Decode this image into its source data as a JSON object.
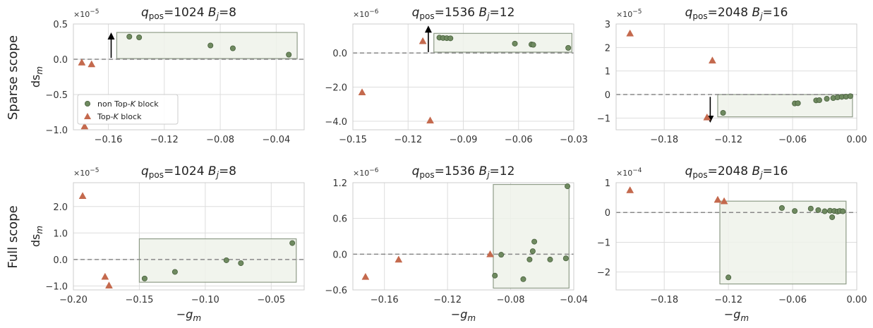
{
  "colors": {
    "circle": "#6f8a60",
    "circle_edge": "#48603d",
    "triangle": "#c4694d",
    "box_fill": "#eef2ea",
    "box_edge": "#8f9c88",
    "grid": "#dddddd",
    "spine": "#cccccc",
    "zero_line": "#888888"
  },
  "row_labels": [
    "Sparse scope",
    "Full scope"
  ],
  "y_axis_label": "ds_m",
  "x_axis_label": "−g_m",
  "legend": {
    "circle_label": "non Top-K block",
    "triangle_label": "Top-K block"
  },
  "chart_data": [
    {
      "type": "scatter",
      "title": {
        "q": "1024",
        "B": "8"
      },
      "multiplier": {
        "base": "×10",
        "exp": "−5"
      },
      "xlim": [
        -0.185,
        -0.02
      ],
      "ylim": [
        -1.0,
        0.5
      ],
      "xticks": [
        -0.16,
        -0.12,
        -0.08,
        -0.04
      ],
      "xticklabels": [
        "−0.16",
        "−0.12",
        "−0.08",
        "−0.04"
      ],
      "yticks": [
        -1.0,
        -0.5,
        0.0,
        0.5
      ],
      "yticklabels": [
        "−1.0",
        "−0.5",
        "0.0",
        "0.5"
      ],
      "circles": [
        [
          -0.145,
          0.32
        ],
        [
          -0.138,
          0.31
        ],
        [
          -0.087,
          0.195
        ],
        [
          -0.071,
          0.155
        ],
        [
          -0.031,
          0.065
        ]
      ],
      "triangles": [
        [
          -0.179,
          -0.045
        ],
        [
          -0.172,
          -0.07
        ],
        [
          -0.177,
          -0.95
        ]
      ],
      "box": [
        -0.154,
        -0.025,
        0.01,
        0.38
      ],
      "arrow": {
        "x": -0.158,
        "from": 0.02,
        "to": 0.33
      },
      "show_legend": true
    },
    {
      "type": "scatter",
      "title": {
        "q": "1536",
        "B": "12"
      },
      "multiplier": {
        "base": "×10",
        "exp": "−6"
      },
      "xlim": [
        -0.15,
        -0.03
      ],
      "ylim": [
        -4.5,
        1.7
      ],
      "xticks": [
        -0.15,
        -0.12,
        -0.09,
        -0.06,
        -0.03
      ],
      "xticklabels": [
        "−0.15",
        "−0.12",
        "−0.09",
        "−0.06",
        "−0.03"
      ],
      "yticks": [
        -4.0,
        -2.0,
        0.0
      ],
      "yticklabels": [
        "−4.0",
        "−2.0",
        "0.0"
      ],
      "circles": [
        [
          -0.103,
          0.9
        ],
        [
          -0.101,
          0.88
        ],
        [
          -0.099,
          0.87
        ],
        [
          -0.097,
          0.86
        ],
        [
          -0.062,
          0.55
        ],
        [
          -0.053,
          0.5
        ],
        [
          -0.052,
          0.48
        ],
        [
          -0.033,
          0.3
        ]
      ],
      "triangles": [
        [
          -0.145,
          -2.3
        ],
        [
          -0.112,
          0.7
        ],
        [
          -0.108,
          -3.95
        ]
      ],
      "box": [
        -0.106,
        -0.031,
        0.05,
        1.15
      ],
      "arrow": {
        "x": -0.109,
        "from": 0.05,
        "to": 1.4
      },
      "show_legend": false
    },
    {
      "type": "scatter",
      "title": {
        "q": "2048",
        "B": "16"
      },
      "multiplier": {
        "base": "×10",
        "exp": "−5"
      },
      "xlim": [
        -0.225,
        0.0
      ],
      "ylim": [
        -1.5,
        3.0
      ],
      "xticks": [
        -0.18,
        -0.12,
        -0.06,
        0.0
      ],
      "xticklabels": [
        "−0.18",
        "−0.12",
        "−0.06",
        "0.00"
      ],
      "yticks": [
        -1,
        0,
        1,
        2,
        3
      ],
      "yticklabels": [
        "−1",
        "0",
        "1",
        "2",
        "3"
      ],
      "circles": [
        [
          -0.125,
          -0.78
        ],
        [
          -0.058,
          -0.38
        ],
        [
          -0.055,
          -0.37
        ],
        [
          -0.038,
          -0.25
        ],
        [
          -0.035,
          -0.24
        ],
        [
          -0.028,
          -0.18
        ],
        [
          -0.022,
          -0.15
        ],
        [
          -0.018,
          -0.12
        ],
        [
          -0.014,
          -0.1
        ],
        [
          -0.01,
          -0.09
        ],
        [
          -0.006,
          -0.07
        ]
      ],
      "triangles": [
        [
          -0.212,
          2.6
        ],
        [
          -0.135,
          1.45
        ],
        [
          -0.14,
          -0.97
        ]
      ],
      "box": [
        -0.13,
        -0.004,
        -0.95,
        0.0
      ],
      "arrow": {
        "x": -0.137,
        "from": -0.1,
        "to": -1.05
      },
      "show_legend": false
    },
    {
      "type": "scatter",
      "title": {
        "q": "1024",
        "B": "8"
      },
      "multiplier": {
        "base": "×10",
        "exp": "−5"
      },
      "xlim": [
        -0.2,
        -0.025
      ],
      "ylim": [
        -1.15,
        2.9
      ],
      "xticks": [
        -0.2,
        -0.15,
        -0.1,
        -0.05
      ],
      "xticklabels": [
        "−0.20",
        "−0.15",
        "−0.10",
        "−0.05"
      ],
      "yticks": [
        -1.0,
        0.0,
        1.0,
        2.0
      ],
      "yticklabels": [
        "−1.0",
        "0.0",
        "1.0",
        "2.0"
      ],
      "circles": [
        [
          -0.146,
          -0.72
        ],
        [
          -0.123,
          -0.47
        ],
        [
          -0.084,
          -0.03
        ],
        [
          -0.073,
          -0.14
        ],
        [
          -0.034,
          0.62
        ]
      ],
      "triangles": [
        [
          -0.193,
          2.4
        ],
        [
          -0.176,
          -0.65
        ],
        [
          -0.173,
          -0.98
        ]
      ],
      "box": [
        -0.15,
        -0.031,
        -0.86,
        0.78
      ],
      "arrow": null,
      "show_legend": false
    },
    {
      "type": "scatter",
      "title": {
        "q": "1536",
        "B": "12"
      },
      "multiplier": {
        "base": "×10",
        "exp": "−6"
      },
      "xlim": [
        -0.18,
        -0.04
      ],
      "ylim": [
        -0.6,
        1.2
      ],
      "xticks": [
        -0.16,
        -0.12,
        -0.08,
        -0.04
      ],
      "xticklabels": [
        "−0.16",
        "−0.12",
        "−0.08",
        "−0.04"
      ],
      "yticks": [
        -0.6,
        0.0,
        0.6,
        1.2
      ],
      "yticklabels": [
        "−0.6",
        "0.0",
        "0.6",
        "1.2"
      ],
      "circles": [
        [
          -0.09,
          -0.36
        ],
        [
          -0.086,
          -0.01
        ],
        [
          -0.072,
          -0.42
        ],
        [
          -0.068,
          -0.09
        ],
        [
          -0.066,
          0.05
        ],
        [
          -0.065,
          0.21
        ],
        [
          -0.055,
          -0.09
        ],
        [
          -0.045,
          -0.07
        ],
        [
          -0.044,
          1.14
        ]
      ],
      "triangles": [
        [
          -0.172,
          -0.38
        ],
        [
          -0.151,
          -0.09
        ],
        [
          -0.093,
          0.0
        ]
      ],
      "box": [
        -0.091,
        -0.043,
        -0.57,
        1.17
      ],
      "arrow": null,
      "show_legend": false
    },
    {
      "type": "scatter",
      "title": {
        "q": "2048",
        "B": "16"
      },
      "multiplier": {
        "base": "×10",
        "exp": "−4"
      },
      "xlim": [
        -0.225,
        0.0
      ],
      "ylim": [
        -2.6,
        1.0
      ],
      "xticks": [
        -0.18,
        -0.12,
        -0.06,
        0.0
      ],
      "xticklabels": [
        "−0.18",
        "−0.12",
        "−0.06",
        "0.00"
      ],
      "yticks": [
        -2,
        -1,
        0,
        1
      ],
      "yticklabels": [
        "−2",
        "−1",
        "0",
        "1"
      ],
      "circles": [
        [
          -0.12,
          -2.18
        ],
        [
          -0.07,
          0.15
        ],
        [
          -0.058,
          0.05
        ],
        [
          -0.043,
          0.13
        ],
        [
          -0.036,
          0.08
        ],
        [
          -0.03,
          0.04
        ],
        [
          -0.025,
          0.06
        ],
        [
          -0.021,
          0.05
        ],
        [
          -0.018,
          0.03
        ],
        [
          -0.016,
          0.05
        ],
        [
          -0.023,
          -0.16
        ],
        [
          -0.013,
          0.04
        ]
      ],
      "triangles": [
        [
          -0.212,
          0.75
        ],
        [
          -0.13,
          0.43
        ],
        [
          -0.124,
          0.38
        ]
      ],
      "box": [
        -0.128,
        -0.01,
        -2.4,
        0.38
      ],
      "arrow": null,
      "show_legend": false
    }
  ]
}
